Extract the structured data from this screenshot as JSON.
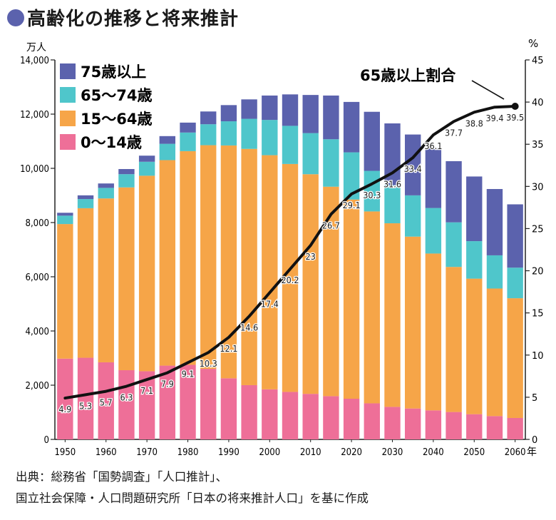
{
  "title": "高齢化の推移と将来推計",
  "chart_data": {
    "type": "bar",
    "stacked": true,
    "categories": [
      1950,
      1955,
      1960,
      1965,
      1970,
      1975,
      1980,
      1985,
      1990,
      1995,
      2000,
      2005,
      2010,
      2015,
      2020,
      2025,
      2030,
      2035,
      2040,
      2045,
      2050,
      2055,
      2060
    ],
    "x_tick_labels": [
      "1950",
      "1960",
      "1970",
      "1980",
      "1990",
      "2000",
      "2010",
      "2020",
      "2030",
      "2040",
      "2050",
      "2060"
    ],
    "x_unit": "年",
    "y_left": {
      "unit": "万人",
      "range": [
        0,
        14000
      ],
      "ticks": [
        "0",
        "2,000",
        "4,000",
        "6,000",
        "8,000",
        "10,000",
        "12,000",
        "14,000"
      ]
    },
    "y_right": {
      "unit": "%",
      "range": [
        0,
        45
      ],
      "ticks": [
        "0",
        "5",
        "10",
        "15",
        "20",
        "25",
        "30",
        "35",
        "40",
        "45"
      ]
    },
    "legend_position": "top-left",
    "series": [
      {
        "name": "0～14歳",
        "color": "#ee6f98",
        "values": [
          2979,
          3012,
          2843,
          2553,
          2515,
          2722,
          2751,
          2603,
          2254,
          2001,
          1847,
          1752,
          1680,
          1595,
          1500,
          1330,
          1200,
          1140,
          1070,
          1010,
          930,
          860,
          790
        ]
      },
      {
        "name": "15～64歳",
        "color": "#f6a548",
        "values": [
          4966,
          5517,
          6047,
          6744,
          7212,
          7581,
          7883,
          8251,
          8590,
          8717,
          8638,
          8409,
          8103,
          7728,
          7350,
          7080,
          6773,
          6341,
          5787,
          5353,
          5001,
          4706,
          4418
        ]
      },
      {
        "name": "65～74歳",
        "color": "#4fc6cb",
        "values": [
          309,
          338,
          389,
          488,
          516,
          602,
          687,
          773,
          892,
          1109,
          1301,
          1407,
          1517,
          1750,
          1740,
          1497,
          1407,
          1522,
          1680,
          1645,
          1383,
          1225,
          1128
        ]
      },
      {
        "name": "75歳以上",
        "color": "#5b62ad",
        "values": [
          107,
          137,
          163,
          189,
          225,
          284,
          366,
          471,
          597,
          717,
          900,
          1160,
          1407,
          1613,
          1860,
          2179,
          2278,
          2245,
          2223,
          2257,
          2385,
          2446,
          2336
        ]
      }
    ],
    "line": {
      "name": "65歳以上割合",
      "unit": "%",
      "values": [
        4.9,
        5.3,
        5.7,
        6.3,
        7.1,
        7.9,
        9.1,
        10.3,
        12.1,
        14.6,
        17.4,
        20.2,
        23,
        26.7,
        29.1,
        30.3,
        31.6,
        33.4,
        36.1,
        37.7,
        38.8,
        39.4,
        39.5
      ],
      "labels": [
        "4.9",
        "5.3",
        "5.7",
        "6.3",
        "7.1",
        "7.9",
        "9.1",
        "10.3",
        "12.1",
        "14.6",
        "17.4",
        "20.2",
        "23",
        "26.7",
        "29.1",
        "30.3",
        "31.6",
        "33.4",
        "36.1",
        "37.7",
        "38.8",
        "39.4",
        "39.5"
      ]
    }
  },
  "source": {
    "line1": "出典：総務省「国勢調査」「人口推計」、",
    "line2": "国立社会保障・人口問題研究所「日本の将来推計人口」を基に作成"
  }
}
